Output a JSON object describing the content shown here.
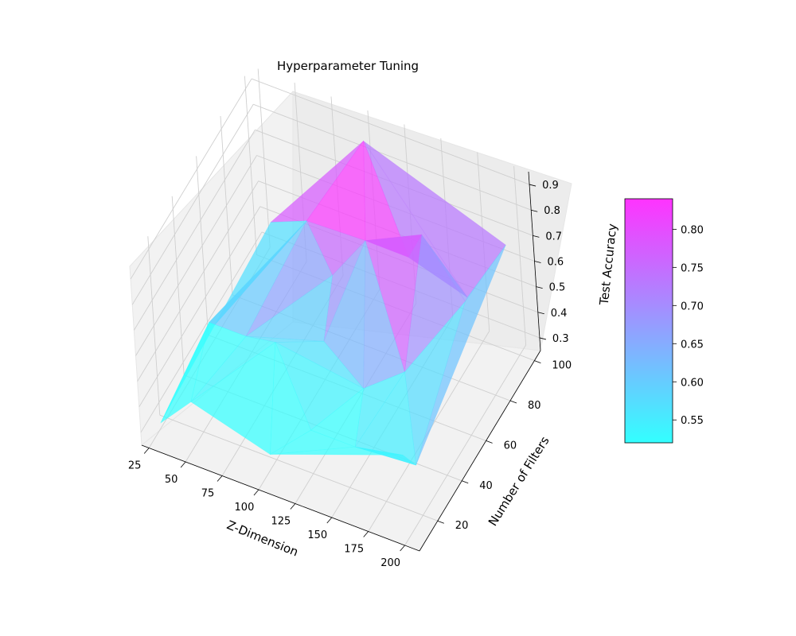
{
  "chart_data": {
    "type": "surface3d",
    "title": "Hyperparameter Tuning",
    "xlabel": "Z-Dimension",
    "ylabel": "Number of Filters",
    "zlabel": "Test Accuracy",
    "x_ticks": [
      "25",
      "50",
      "75",
      "100",
      "125",
      "150",
      "175",
      "200"
    ],
    "y_ticks": [
      "20",
      "40",
      "60",
      "80",
      "100"
    ],
    "z_ticks": [
      "0.3",
      "0.4",
      "0.5",
      "0.6",
      "0.7",
      "0.8",
      "0.9"
    ],
    "xlim": [
      20,
      210
    ],
    "ylim": [
      5,
      105
    ],
    "zlim": [
      0.25,
      0.95
    ],
    "colormap": "cool",
    "colorbar": {
      "range": [
        0.52,
        0.84
      ],
      "ticks": [
        "0.55",
        "0.60",
        "0.65",
        "0.70",
        "0.75",
        "0.80"
      ],
      "low_color": "#33ffff",
      "high_color": "#ff33ff"
    },
    "points": [
      {
        "x": 25,
        "y": 15,
        "z": 0.27
      },
      {
        "x": 50,
        "y": 12,
        "z": 0.43
      },
      {
        "x": 105,
        "y": 10,
        "z": 0.36
      },
      {
        "x": 130,
        "y": 15,
        "z": 0.47
      },
      {
        "x": 165,
        "y": 10,
        "z": 0.52
      },
      {
        "x": 200,
        "y": 8,
        "z": 0.58
      },
      {
        "x": 205,
        "y": 12,
        "z": 0.52
      },
      {
        "x": 40,
        "y": 40,
        "z": 0.5
      },
      {
        "x": 70,
        "y": 35,
        "z": 0.55
      },
      {
        "x": 95,
        "y": 30,
        "z": 0.62
      },
      {
        "x": 115,
        "y": 45,
        "z": 0.55
      },
      {
        "x": 150,
        "y": 35,
        "z": 0.52
      },
      {
        "x": 175,
        "y": 40,
        "z": 0.6
      },
      {
        "x": 25,
        "y": 60,
        "z": 0.3
      },
      {
        "x": 55,
        "y": 75,
        "z": 0.65
      },
      {
        "x": 85,
        "y": 70,
        "z": 0.76
      },
      {
        "x": 110,
        "y": 60,
        "z": 0.68
      },
      {
        "x": 130,
        "y": 65,
        "z": 0.82
      },
      {
        "x": 150,
        "y": 75,
        "z": 0.72
      },
      {
        "x": 165,
        "y": 70,
        "z": 0.88
      },
      {
        "x": 180,
        "y": 85,
        "z": 0.55
      },
      {
        "x": 185,
        "y": 78,
        "z": 0.6
      },
      {
        "x": 200,
        "y": 95,
        "z": 0.72
      },
      {
        "x": 105,
        "y": 95,
        "z": 0.92
      }
    ]
  }
}
